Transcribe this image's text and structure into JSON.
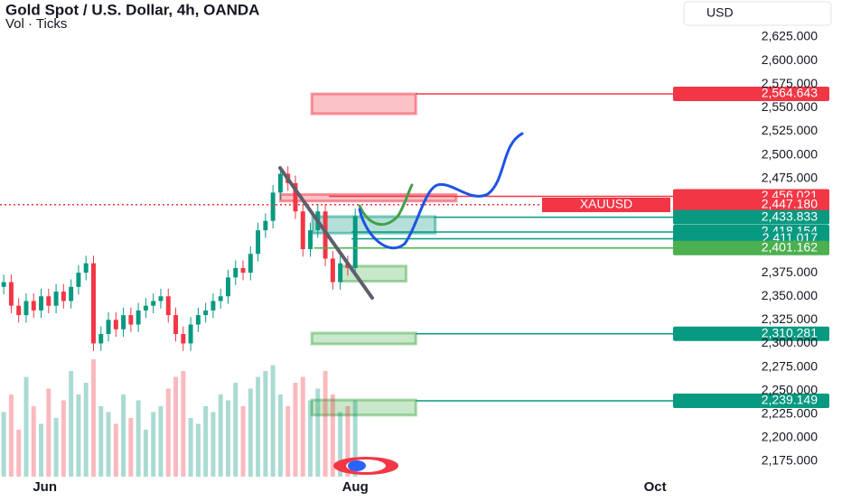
{
  "header": {
    "title": "Gold Spot / U.S. Dollar, 4h, OANDA",
    "indicator": "Vol · Ticks",
    "currency": "USD",
    "symbol_tag": "XAUUSD"
  },
  "chart_data": {
    "type": "candlestick",
    "ylim": [
      2175,
      2625
    ],
    "yticks": [
      {
        "value": 2625,
        "label": "2,625.000"
      },
      {
        "value": 2600,
        "label": "2,600.000"
      },
      {
        "value": 2575,
        "label": "2,575.000"
      },
      {
        "value": 2550,
        "label": "2,550.000"
      },
      {
        "value": 2525,
        "label": "2,525.000"
      },
      {
        "value": 2500,
        "label": "2,500.000"
      },
      {
        "value": 2475,
        "label": "2,475.000"
      },
      {
        "value": 2375,
        "label": "2,375.000"
      },
      {
        "value": 2350,
        "label": "2,350.000"
      },
      {
        "value": 2325,
        "label": "2,325.000"
      },
      {
        "value": 2300,
        "label": "2,300.000"
      },
      {
        "value": 2275,
        "label": "2,275.000"
      },
      {
        "value": 2250,
        "label": "2,250.000"
      },
      {
        "value": 2225,
        "label": "2,225.000"
      },
      {
        "value": 2200,
        "label": "2,200.000"
      },
      {
        "value": 2175,
        "label": "2,175.000"
      }
    ],
    "xlim": [
      0,
      90
    ],
    "xticks": [
      {
        "value": 6,
        "label": "Jun"
      },
      {
        "value": 47.5,
        "label": "Aug"
      },
      {
        "value": 87.6,
        "label": "Oct"
      }
    ],
    "up_color": "#089981",
    "down_color": "#f23645",
    "open": [
      2360,
      2365,
      2340,
      2330,
      2345,
      2335,
      2350,
      2340,
      2355,
      2345,
      2360,
      2375,
      2385,
      2300,
      2310,
      2325,
      2315,
      2330,
      2320,
      2335,
      2340,
      2345,
      2350,
      2330,
      2310,
      2300,
      2320,
      2330,
      2335,
      2345,
      2350,
      2370,
      2380,
      2375,
      2395,
      2420,
      2430,
      2460,
      2480,
      2470,
      2440,
      2400,
      2420,
      2440,
      2390,
      2365,
      2385,
      2380
    ],
    "high": [
      2373,
      2373,
      2348,
      2353,
      2353,
      2358,
      2358,
      2363,
      2363,
      2368,
      2383,
      2393,
      2393,
      2318,
      2333,
      2333,
      2338,
      2338,
      2343,
      2348,
      2353,
      2358,
      2358,
      2338,
      2318,
      2328,
      2338,
      2343,
      2353,
      2358,
      2378,
      2388,
      2388,
      2403,
      2428,
      2438,
      2468,
      2488,
      2488,
      2478,
      2448,
      2428,
      2448,
      2448,
      2398,
      2393,
      2393,
      2443
    ],
    "low": [
      2352,
      2332,
      2322,
      2322,
      2327,
      2327,
      2332,
      2332,
      2337,
      2337,
      2352,
      2367,
      2292,
      2292,
      2302,
      2307,
      2307,
      2312,
      2312,
      2327,
      2332,
      2337,
      2322,
      2302,
      2292,
      2292,
      2312,
      2322,
      2327,
      2337,
      2342,
      2362,
      2367,
      2367,
      2387,
      2412,
      2422,
      2452,
      2462,
      2432,
      2392,
      2392,
      2412,
      2382,
      2357,
      2357,
      2372,
      2372
    ],
    "close": [
      2365,
      2340,
      2330,
      2345,
      2335,
      2350,
      2340,
      2355,
      2345,
      2360,
      2375,
      2385,
      2300,
      2310,
      2325,
      2315,
      2330,
      2320,
      2335,
      2340,
      2345,
      2350,
      2330,
      2310,
      2300,
      2320,
      2330,
      2335,
      2345,
      2350,
      2370,
      2380,
      2375,
      2395,
      2420,
      2430,
      2460,
      2480,
      2470,
      2440,
      2400,
      2420,
      2440,
      2390,
      2365,
      2385,
      2380,
      2435
    ],
    "volume": [
      55,
      70,
      40,
      85,
      60,
      45,
      75,
      50,
      65,
      90,
      70,
      80,
      100,
      60,
      55,
      45,
      70,
      50,
      65,
      40,
      55,
      60,
      75,
      85,
      90,
      50,
      45,
      60,
      55,
      70,
      65,
      80,
      60,
      75,
      85,
      90,
      95,
      70,
      60,
      80,
      85,
      65,
      75,
      90,
      70,
      55,
      60,
      65
    ],
    "volume_lim": [
      0,
      100
    ],
    "levels": [
      {
        "value": 2564.643,
        "label": "2,564.643",
        "color": "#f23645",
        "x_from": 55.6
      },
      {
        "value": 2456.021,
        "label": "2,456.021",
        "color": "#f23645",
        "x_from": 44
      },
      {
        "value": 2447.18,
        "label": "2,447.180",
        "color": "#f23645",
        "x_from": 0,
        "dashed": true
      },
      {
        "value": 2433.833,
        "label": "2,433.833",
        "color": "#089981",
        "x_from": 58
      },
      {
        "value": 2418.154,
        "label": "2,418.154",
        "color": "#089981",
        "x_from": 47
      },
      {
        "value": 2411.017,
        "label": "2,411.017",
        "color": "#089981",
        "x_from": 47
      },
      {
        "value": 2401.162,
        "label": "2,401.162",
        "color": "#4caf50",
        "x_from": 42
      },
      {
        "value": 2310.281,
        "label": "2,310.281",
        "color": "#089981",
        "x_from": 55.6
      },
      {
        "value": 2239.149,
        "label": "2,239.149",
        "color": "#089981",
        "x_from": 55.6
      }
    ],
    "zones": [
      {
        "x": [
          41.7,
          55.6
        ],
        "y": [
          2543.6,
          2564.7
        ],
        "color": "#f23645"
      },
      {
        "x": [
          37.5,
          61
        ],
        "y": [
          2451,
          2458
        ],
        "color": "#f23645"
      },
      {
        "x": [
          41.8,
          58.2
        ],
        "y": [
          2417,
          2434.5
        ],
        "color": "#089981"
      },
      {
        "x": [
          45.6,
          54.3
        ],
        "y": [
          2366,
          2382
        ],
        "color": "#4caf50"
      },
      {
        "x": [
          41.7,
          55.6
        ],
        "y": [
          2299.5,
          2311
        ],
        "color": "#4caf50"
      },
      {
        "x": [
          41.7,
          55.6
        ],
        "y": [
          2224,
          2240
        ],
        "color": "#4caf50"
      }
    ]
  }
}
